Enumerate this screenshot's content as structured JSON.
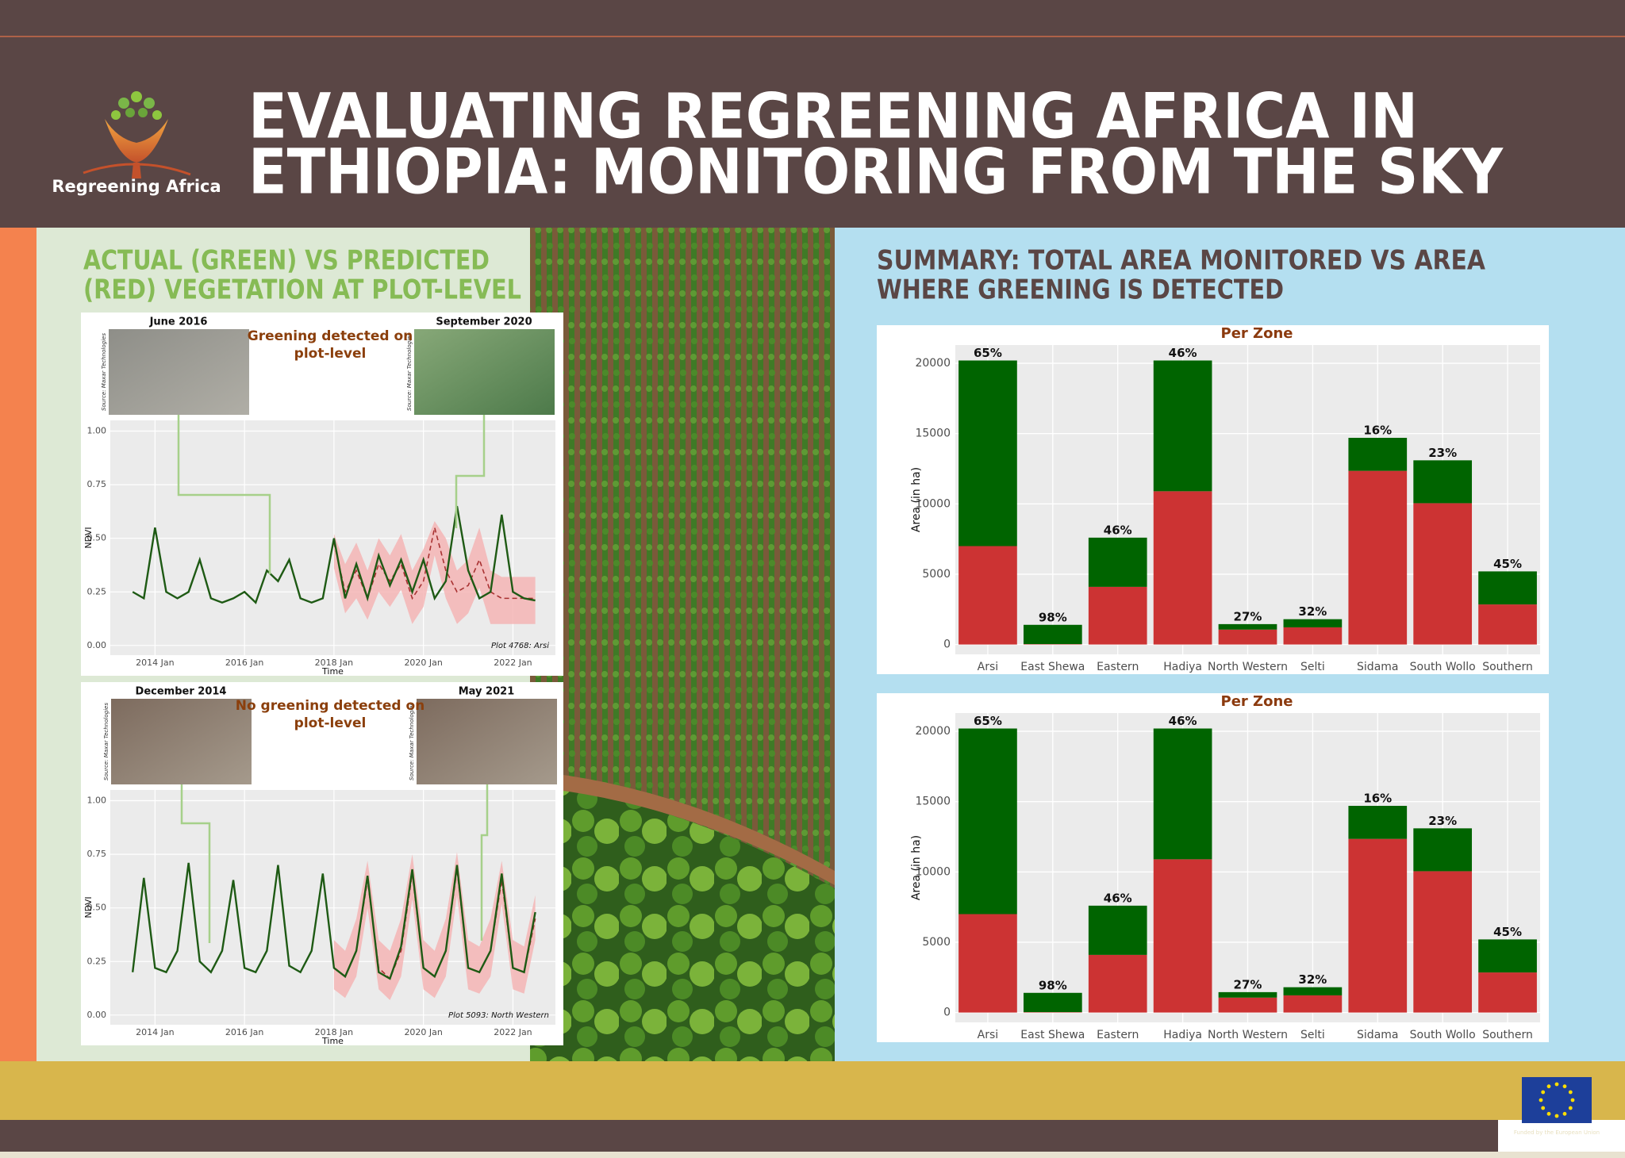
{
  "header": {
    "logo_text": "Regreening Africa",
    "title": [
      "EVALUATING REGREENING AFRICA IN",
      "ETHIOPIA: MONITORING FROM THE SKY"
    ]
  },
  "left_section": {
    "title": [
      "ACTUAL (GREEN) VS PREDICTED",
      "(RED) VEGETATION AT PLOT-LEVEL"
    ],
    "plots": [
      {
        "image_dates": [
          "June 2016",
          "September 2020"
        ],
        "image_source": "Source: Maxar Technologies",
        "finding": [
          "Greening detected on",
          "plot-level"
        ],
        "chart_data": {
          "type": "line",
          "x": [
            2013.5,
            2013.75,
            2014,
            2014.25,
            2014.5,
            2014.75,
            2015,
            2015.25,
            2015.5,
            2015.75,
            2016,
            2016.25,
            2016.5,
            2016.75,
            2017,
            2017.25,
            2017.5,
            2017.75,
            2018,
            2018.25,
            2018.5,
            2018.75,
            2019,
            2019.25,
            2019.5,
            2019.75,
            2020,
            2020.25,
            2020.5,
            2020.75,
            2021,
            2021.25,
            2021.5,
            2021.75,
            2022,
            2022.25,
            2022.5
          ],
          "series": [
            {
              "color": "#1e5a14",
              "values": [
                0.25,
                0.22,
                0.55,
                0.25,
                0.22,
                0.25,
                0.4,
                0.22,
                0.2,
                0.22,
                0.25,
                0.2,
                0.35,
                0.3,
                0.4,
                0.22,
                0.2,
                0.22,
                0.5,
                0.22,
                0.38,
                0.22,
                0.42,
                0.28,
                0.4,
                0.25,
                0.4,
                0.22,
                0.3,
                0.65,
                0.35,
                0.22,
                0.25,
                0.61,
                0.25,
                0.22,
                0.21
              ]
            }
          ],
          "prediction": {
            "color": "#a83232",
            "band_color": "#f5b5b5",
            "x": [
              2018,
              2018.25,
              2018.5,
              2018.75,
              2019,
              2019.25,
              2019.5,
              2019.75,
              2020,
              2020.25,
              2020.5,
              2020.75,
              2021,
              2021.25,
              2021.5,
              2021.75,
              2022,
              2022.25,
              2022.5
            ],
            "values": [
              0.48,
              0.25,
              0.35,
              0.22,
              0.38,
              0.3,
              0.38,
              0.22,
              0.3,
              0.55,
              0.35,
              0.25,
              0.28,
              0.4,
              0.25,
              0.22,
              0.22,
              0.22,
              0.22
            ],
            "lower": [
              0.36,
              0.15,
              0.22,
              0.12,
              0.25,
              0.18,
              0.26,
              0.1,
              0.18,
              0.42,
              0.22,
              0.1,
              0.15,
              0.27,
              0.1,
              0.1,
              0.1,
              0.1,
              0.1
            ],
            "upper": [
              0.52,
              0.38,
              0.48,
              0.35,
              0.5,
              0.42,
              0.52,
              0.35,
              0.45,
              0.58,
              0.5,
              0.35,
              0.4,
              0.55,
              0.35,
              0.32,
              0.32,
              0.32,
              0.32
            ]
          },
          "xlabel": "Time",
          "ylabel": "NDVI",
          "xlim": [
            2013,
            2022.95
          ],
          "ylim": [
            -0.045,
            1.05
          ],
          "xticks": [
            {
              "value": 2014,
              "label": "2014 Jan"
            },
            {
              "value": 2016,
              "label": "2016 Jan"
            },
            {
              "value": 2018,
              "label": "2018 Jan"
            },
            {
              "value": 2020,
              "label": "2020 Jan"
            },
            {
              "value": 2022,
              "label": "2022 Jan"
            }
          ],
          "yticks": [
            {
              "value": 0,
              "label": "0.00"
            },
            {
              "value": 0.25,
              "label": "0.25"
            },
            {
              "value": 0.5,
              "label": "0.50"
            },
            {
              "value": 0.75,
              "label": "0.75"
            },
            {
              "value": 1,
              "label": "1.00"
            }
          ],
          "grid": true,
          "annotation": "Plot 4768: Arsi"
        }
      },
      {
        "image_dates": [
          "December 2014",
          "May 2021"
        ],
        "image_source": "Source: Maxar Technologies",
        "finding": [
          "No greening detected on",
          "plot-level"
        ],
        "chart_data": {
          "type": "line",
          "x": [
            2013.5,
            2013.75,
            2014,
            2014.25,
            2014.5,
            2014.75,
            2015,
            2015.25,
            2015.5,
            2015.75,
            2016,
            2016.25,
            2016.5,
            2016.75,
            2017,
            2017.25,
            2017.5,
            2017.75,
            2018,
            2018.25,
            2018.5,
            2018.75,
            2019,
            2019.25,
            2019.5,
            2019.75,
            2020,
            2020.25,
            2020.5,
            2020.75,
            2021,
            2021.25,
            2021.5,
            2021.75,
            2022,
            2022.25,
            2022.5
          ],
          "series": [
            {
              "color": "#1e5a14",
              "values": [
                0.2,
                0.64,
                0.22,
                0.2,
                0.3,
                0.71,
                0.25,
                0.2,
                0.3,
                0.63,
                0.22,
                0.2,
                0.3,
                0.7,
                0.23,
                0.2,
                0.3,
                0.66,
                0.22,
                0.18,
                0.3,
                0.65,
                0.2,
                0.17,
                0.32,
                0.68,
                0.22,
                0.18,
                0.3,
                0.7,
                0.22,
                0.2,
                0.3,
                0.66,
                0.22,
                0.2,
                0.48
              ]
            }
          ],
          "prediction": {
            "color": "#a83232",
            "band_color": "#f5b5b5",
            "x": [
              2018,
              2018.25,
              2018.5,
              2018.75,
              2019,
              2019.25,
              2019.5,
              2019.75,
              2020,
              2020.25,
              2020.5,
              2020.75,
              2021,
              2021.25,
              2021.5,
              2021.75,
              2022,
              2022.25,
              2022.5
            ],
            "values": [
              0.22,
              0.18,
              0.3,
              0.63,
              0.22,
              0.17,
              0.3,
              0.66,
              0.22,
              0.18,
              0.3,
              0.68,
              0.22,
              0.2,
              0.3,
              0.63,
              0.22,
              0.2,
              0.45
            ],
            "lower": [
              0.12,
              0.08,
              0.18,
              0.5,
              0.12,
              0.07,
              0.18,
              0.54,
              0.12,
              0.08,
              0.18,
              0.56,
              0.12,
              0.1,
              0.18,
              0.52,
              0.12,
              0.1,
              0.35
            ],
            "upper": [
              0.35,
              0.3,
              0.45,
              0.72,
              0.35,
              0.3,
              0.45,
              0.75,
              0.35,
              0.3,
              0.45,
              0.76,
              0.35,
              0.32,
              0.45,
              0.72,
              0.35,
              0.32,
              0.56
            ]
          },
          "xlabel": "Time",
          "ylabel": "NDVI",
          "xlim": [
            2013,
            2022.95
          ],
          "ylim": [
            -0.045,
            1.05
          ],
          "xticks": [
            {
              "value": 2014,
              "label": "2014 Jan"
            },
            {
              "value": 2016,
              "label": "2016 Jan"
            },
            {
              "value": 2018,
              "label": "2018 Jan"
            },
            {
              "value": 2020,
              "label": "2020 Jan"
            },
            {
              "value": 2022,
              "label": "2022 Jan"
            }
          ],
          "yticks": [
            {
              "value": 0,
              "label": "0.00"
            },
            {
              "value": 0.25,
              "label": "0.25"
            },
            {
              "value": 0.5,
              "label": "0.50"
            },
            {
              "value": 0.75,
              "label": "0.75"
            },
            {
              "value": 1,
              "label": "1.00"
            }
          ],
          "grid": true,
          "annotation": "Plot 5093: North Western"
        }
      }
    ]
  },
  "right_section": {
    "title": [
      "SUMMARY: TOTAL AREA MONITORED VS AREA",
      "WHERE GREENING IS DETECTED"
    ],
    "charts": [
      {
        "type": "bar",
        "stacked": true,
        "title": "Per Zone",
        "ylabel": "Area (in ha)",
        "categories": [
          "Arsi",
          "East Shewa",
          "Eastern",
          "Hadiya",
          "North Western",
          "Selti",
          "Sidama",
          "South Wollo",
          "Southern"
        ],
        "series": [
          {
            "color": "#cc3333",
            "values": [
              7000,
              30,
              4100,
              10900,
              1060,
              1220,
              12350,
              10050,
              2850
            ]
          },
          {
            "color": "#006400",
            "values": [
              13200,
              1370,
              3500,
              9300,
              390,
              580,
              2350,
              3050,
              2350
            ]
          }
        ],
        "top_labels": [
          "65%",
          "98%",
          "46%",
          "46%",
          "27%",
          "32%",
          "16%",
          "23%",
          "45%"
        ],
        "ylim": [
          -700,
          21300
        ],
        "yticks": [
          0,
          5000,
          10000,
          15000,
          20000
        ],
        "grid": true
      },
      {
        "type": "bar",
        "stacked": true,
        "title": "Per Zone",
        "ylabel": "Area (in ha)",
        "categories": [
          "Arsi",
          "East Shewa",
          "Eastern",
          "Hadiya",
          "North Western",
          "Selti",
          "Sidama",
          "South Wollo",
          "Southern"
        ],
        "series": [
          {
            "color": "#cc3333",
            "values": [
              7000,
              30,
              4100,
              10900,
              1060,
              1220,
              12350,
              10050,
              2850
            ]
          },
          {
            "color": "#006400",
            "values": [
              13200,
              1370,
              3500,
              9300,
              390,
              580,
              2350,
              3050,
              2350
            ]
          }
        ],
        "top_labels": [
          "65%",
          "98%",
          "46%",
          "46%",
          "27%",
          "32%",
          "16%",
          "23%",
          "45%"
        ],
        "ylim": [
          -700,
          21300
        ],
        "yticks": [
          0,
          5000,
          10000,
          15000,
          20000
        ],
        "grid": true
      }
    ]
  },
  "footer": {
    "eu_label": "Funded by the European Union"
  }
}
